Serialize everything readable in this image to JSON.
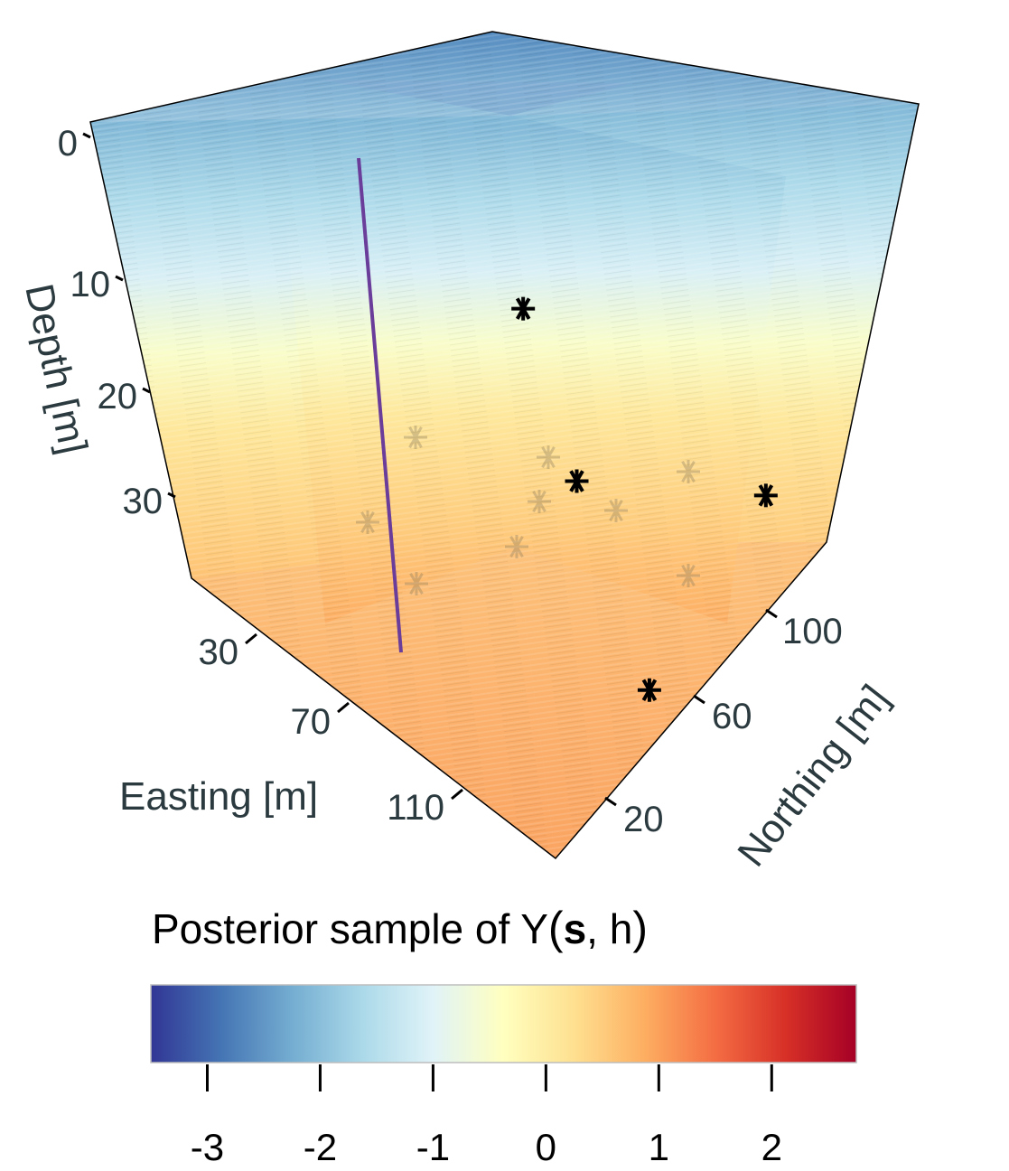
{
  "chart_data": {
    "type": "heatmap",
    "subtype": "3d-block-slices",
    "title": "",
    "axes": {
      "depth": {
        "label": "Depth [m]",
        "ticks": [
          0,
          10,
          20,
          30
        ],
        "tick_labels": [
          "0",
          "10",
          "20",
          "30"
        ],
        "range": [
          0,
          38
        ]
      },
      "easting": {
        "label": "Easting [m]",
        "ticks": [
          30,
          70,
          110
        ],
        "tick_labels": [
          "30",
          "70",
          "110"
        ],
        "range": [
          10,
          130
        ]
      },
      "northing": {
        "label": "Northing [m]",
        "ticks": [
          20,
          60,
          100
        ],
        "tick_labels": [
          "20",
          "60",
          "100"
        ],
        "range": [
          0,
          120
        ]
      }
    },
    "depth_profile": [
      {
        "depth": 0,
        "value": -2.1
      },
      {
        "depth": 4,
        "value": -1.6
      },
      {
        "depth": 8,
        "value": -1.1
      },
      {
        "depth": 12,
        "value": -0.5
      },
      {
        "depth": 16,
        "value": 0.1
      },
      {
        "depth": 22,
        "value": 0.5
      },
      {
        "depth": 28,
        "value": 0.9
      },
      {
        "depth": 34,
        "value": 1.1
      },
      {
        "depth": 38,
        "value": 1.2
      }
    ],
    "borehole_markers_visible": [
      {
        "easting": 30,
        "northing": 120,
        "note": "black asterisk"
      },
      {
        "easting": 110,
        "northing": 120,
        "note": "black asterisk"
      },
      {
        "easting": 70,
        "northing": 90,
        "note": "black asterisk"
      },
      {
        "easting": 120,
        "northing": 55,
        "note": "black asterisk"
      }
    ],
    "borehole_markers_faded_count": 9,
    "vertical_line": {
      "color": "#6a3d9a"
    },
    "colorbar": {
      "title_prefix": "Posterior sample of Y",
      "title_bold": "s",
      "title_suffix": ", h",
      "range": [
        -3.5,
        2.75
      ],
      "ticks": [
        -3,
        -2,
        -1,
        0,
        1,
        2
      ],
      "tick_labels": [
        "-3",
        "-2",
        "-1",
        "0",
        "1",
        "2"
      ],
      "palette": [
        "#313695",
        "#4575b4",
        "#74add1",
        "#abd9e9",
        "#e0f3f8",
        "#ffffbf",
        "#fee090",
        "#fdae61",
        "#f46d43",
        "#d73027",
        "#a50026"
      ]
    }
  }
}
